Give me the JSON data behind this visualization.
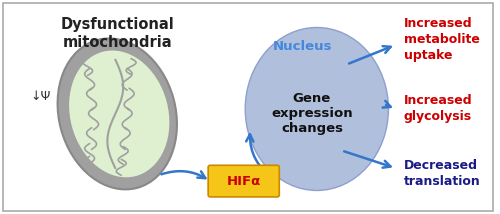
{
  "bg_color": "#ffffff",
  "border_color": "#aaaaaa",
  "title_text": "Dysfunctional\nmitochondria",
  "title_color": "#222222",
  "title_fontsize": 10.5,
  "psi_text": "↓Ψ",
  "psi_color": "#333333",
  "psi_fontsize": 9,
  "mito_outer_color": "#a0a0a0",
  "mito_inner_color": "#dff0d0",
  "nucleus_color": "#a8b8d8",
  "nucleus_label": "Nucleus",
  "nucleus_label_color": "#4488dd",
  "nucleus_label_fontsize": 9.5,
  "gene_text": "Gene\nexpression\nchanges",
  "gene_fontsize": 9.5,
  "gene_color": "#111111",
  "hif_text": "HIFα",
  "hif_box_color": "#f5c518",
  "hif_text_color": "#cc0000",
  "hif_fontsize": 9.5,
  "arrow_color": "#3377cc",
  "arrow_lw": 1.8,
  "label1_text": "Increased\nmetabolite\nuptake",
  "label1_color": "#cc0000",
  "label2_text": "Increased\nglycolysis",
  "label2_color": "#cc0000",
  "label3_text": "Decreased\ntranslation",
  "label3_color": "#1a1a88",
  "label_fontsize": 9.0
}
